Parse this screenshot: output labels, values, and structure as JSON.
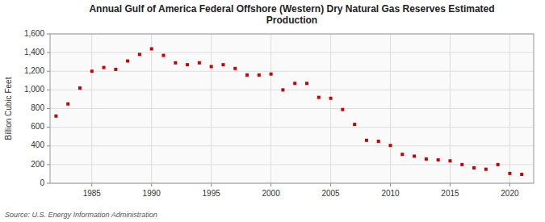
{
  "chart_data": {
    "type": "scatter",
    "title": "Annual Gulf of America Federal Offshore (Western) Dry Natural Gas Reserves Estimated\nProduction",
    "y_label": "Billion Cubic Feet",
    "annotations": [
      "Source: U.S. Energy Information Administration"
    ],
    "x": [
      1982,
      1983,
      1984,
      1985,
      1986,
      1987,
      1988,
      1989,
      1990,
      1991,
      1992,
      1993,
      1994,
      1995,
      1996,
      1997,
      1998,
      1999,
      2000,
      2001,
      2002,
      2003,
      2004,
      2005,
      2006,
      2007,
      2008,
      2009,
      2010,
      2011,
      2012,
      2013,
      2014,
      2015,
      2016,
      2017,
      2018,
      2019,
      2020,
      2021
    ],
    "values": [
      720,
      850,
      1020,
      1200,
      1240,
      1220,
      1310,
      1380,
      1440,
      1370,
      1290,
      1270,
      1290,
      1250,
      1270,
      1230,
      1160,
      1160,
      1170,
      1000,
      1070,
      1070,
      920,
      910,
      790,
      630,
      460,
      450,
      405,
      310,
      290,
      260,
      250,
      240,
      200,
      165,
      150,
      200,
      105,
      95
    ],
    "color": "#cc0000",
    "marker": "square",
    "xlim": [
      1981.5,
      2022
    ],
    "xticks": [
      1985,
      1990,
      1995,
      2000,
      2005,
      2010,
      2015,
      2020
    ],
    "ylim": [
      0,
      1600
    ],
    "yticks": [
      0,
      200,
      400,
      600,
      800,
      {
        "value": 1000,
        "label": "1,000"
      },
      {
        "value": 1200,
        "label": "1,200"
      },
      {
        "value": 1400,
        "label": "1,400"
      },
      {
        "value": 1600,
        "label": "1,600"
      }
    ],
    "grid": true
  }
}
